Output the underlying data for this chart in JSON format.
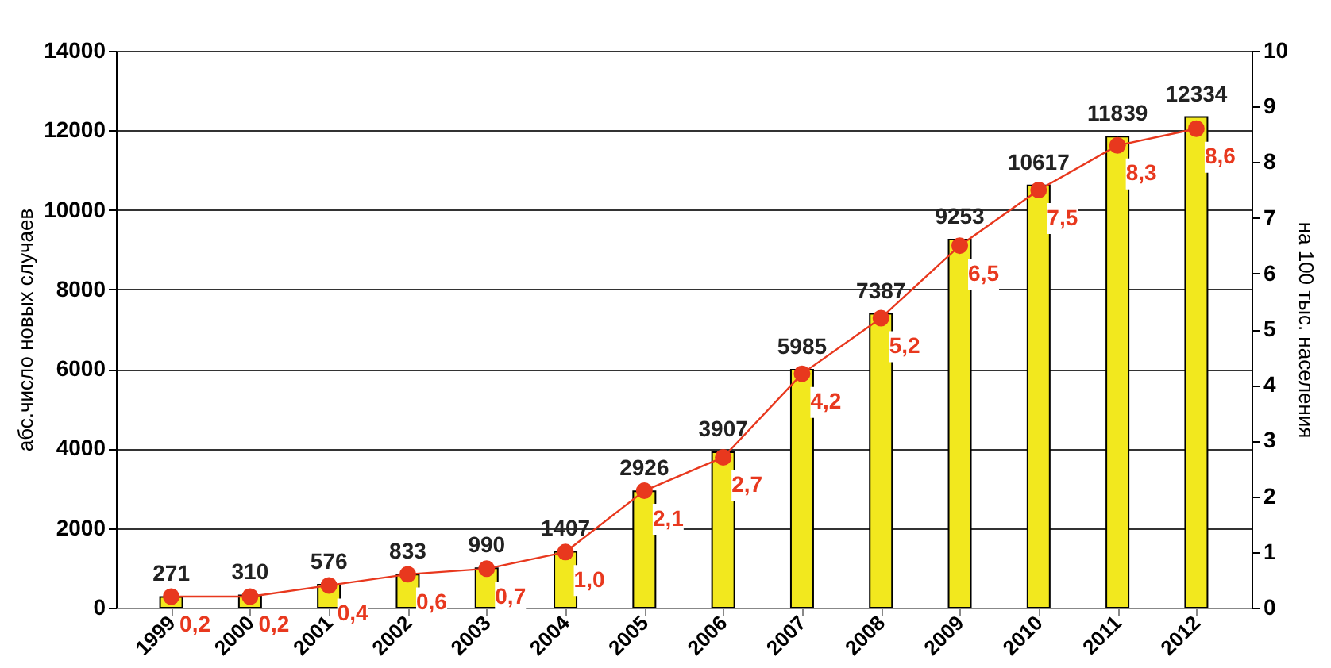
{
  "chart_data": {
    "type": "bar",
    "categories": [
      "1999",
      "2000",
      "2001",
      "2002",
      "2003",
      "2004",
      "2005",
      "2006",
      "2007",
      "2008",
      "2009",
      "2010",
      "2011",
      "2012"
    ],
    "ylabel": "абс.число новых случаев",
    "y2label": "на 100 тыс. населения",
    "series": [
      {
        "color": "#f2e81e",
        "values": [
          271,
          310,
          576,
          833,
          990,
          1407,
          2926,
          3907,
          5985,
          7387,
          9253,
          10617,
          11839,
          12334
        ],
        "value_labels": [
          "271",
          "310",
          "576",
          "833",
          "990",
          "1407",
          "2926",
          "3907",
          "5985",
          "7387",
          "9253",
          "10617",
          "11839",
          "12334"
        ]
      },
      {
        "type": "line",
        "axis": "y2",
        "color": "#e8381e",
        "marker": "circle",
        "values": [
          0.2,
          0.2,
          0.4,
          0.6,
          0.7,
          1.0,
          2.1,
          2.7,
          4.2,
          5.2,
          6.5,
          7.5,
          8.3,
          8.6
        ],
        "value_labels": [
          "0,2",
          "0,2",
          "0,4",
          "0,6",
          "0,7",
          "1,0",
          "2,1",
          "2,7",
          "4,2",
          "5,2",
          "6,5",
          "7,5",
          "8,3",
          "8,6"
        ]
      }
    ],
    "ylim": [
      0,
      14000
    ],
    "yticks": [
      0,
      2000,
      4000,
      6000,
      8000,
      10000,
      12000,
      14000
    ],
    "y2lim": [
      0,
      10
    ],
    "y2ticks": [
      0,
      1,
      2,
      3,
      4,
      5,
      6,
      7,
      8,
      9,
      10
    ],
    "grid": "y",
    "legend": false
  }
}
